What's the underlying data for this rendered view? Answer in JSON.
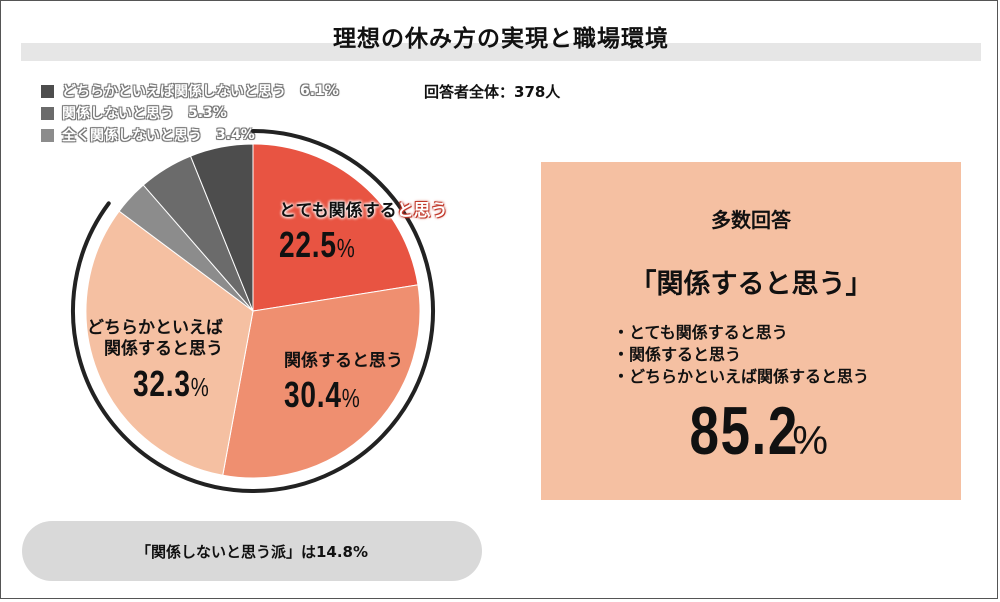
{
  "title": "理想の休み方の実現と職場環境",
  "total": "回答者全体：378人",
  "legend": [
    {
      "label": "どちらかといえば関係しないと思う",
      "value": "6.1%",
      "color": "#4d4d4d"
    },
    {
      "label": "関係しないと思う",
      "value": "5.3%",
      "color": "#6b6b6b"
    },
    {
      "label": "全く関係しないと思う",
      "value": "3.4%",
      "color": "#8c8c8c"
    }
  ],
  "slice_labels": {
    "s1": {
      "name_a": "とても関係する",
      "name_b": "と思う",
      "value": "22.5",
      "unit": "%"
    },
    "s2": {
      "name": "関係すると思う",
      "value": "30.4",
      "unit": "%"
    },
    "s3": {
      "name_line1": "どちらかといえば",
      "name_line2": "関係すると思う",
      "value": "32.3",
      "unit": "%"
    }
  },
  "chart_data": {
    "type": "pie",
    "title": "理想の休み方の実現と職場環境",
    "slices": [
      {
        "label": "とても関係すると思う",
        "value": 22.5,
        "color": "#e85442"
      },
      {
        "label": "関係すると思う",
        "value": 30.4,
        "color": "#ef8f70"
      },
      {
        "label": "どちらかといえば関係すると思う",
        "value": 32.3,
        "color": "#f5c0a2"
      },
      {
        "label": "全く関係しないと思う",
        "value": 3.4,
        "color": "#8c8c8c"
      },
      {
        "label": "関係しないと思う",
        "value": 5.3,
        "color": "#6b6b6b"
      },
      {
        "label": "どちらかといえば関係しないと思う",
        "value": 6.1,
        "color": "#4d4d4d"
      }
    ],
    "start": "12 o'clock",
    "direction": "clockwise",
    "highlight_arc_total": 85.2
  },
  "summary": {
    "heading": "多数回答",
    "main": "「関係すると思う」",
    "items": [
      "とても関係すると思う",
      "関係すると思う",
      "どちらかといえば関係すると思う"
    ],
    "value": "85.2",
    "unit": "%"
  },
  "footer": "「関係しないと思う派」は14.8%"
}
